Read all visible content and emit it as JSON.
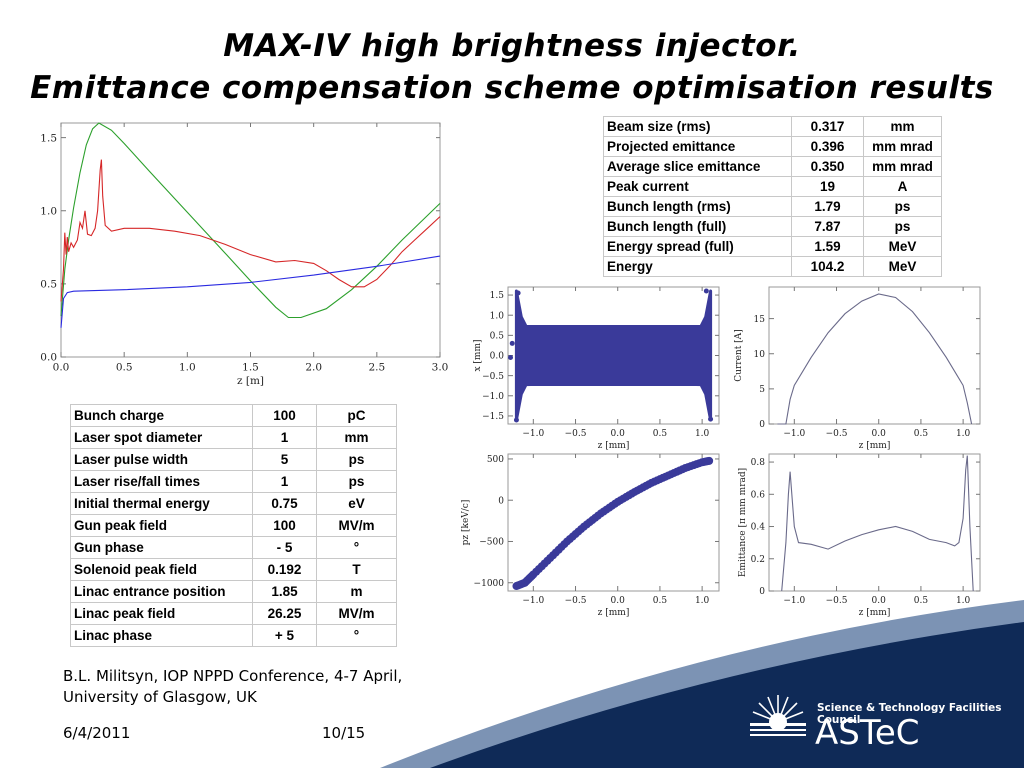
{
  "title": {
    "line1": "MAX-IV high brightness injector.",
    "line2": "Emittance compensation scheme optimisation results"
  },
  "beam_parameters": [
    {
      "name": "Beam size (rms)",
      "value": "0.317",
      "unit": "mm"
    },
    {
      "name": "Projected emittance",
      "value": "0.396",
      "unit": "mm mrad"
    },
    {
      "name": "Average slice emittance",
      "value": "0.350",
      "unit": "mm mrad"
    },
    {
      "name": "Peak current",
      "value": "19",
      "unit": "A"
    },
    {
      "name": "Bunch length (rms)",
      "value": "1.79",
      "unit": "ps"
    },
    {
      "name": "Bunch length (full)",
      "value": "7.87",
      "unit": "ps"
    },
    {
      "name": "Energy spread (full)",
      "value": "1.59",
      "unit": "MeV"
    },
    {
      "name": "Energy",
      "value": "104.2",
      "unit": "MeV"
    }
  ],
  "injector_parameters": [
    {
      "name": "Bunch charge",
      "value": "100",
      "unit": "pC"
    },
    {
      "name": "Laser spot diameter",
      "value": "1",
      "unit": "mm"
    },
    {
      "name": "Laser pulse width",
      "value": "5",
      "unit": "ps"
    },
    {
      "name": "Laser rise/fall times",
      "value": "1",
      "unit": "ps"
    },
    {
      "name": "Initial thermal energy",
      "value": "0.75",
      "unit": "eV"
    },
    {
      "name": "Gun peak field",
      "value": "100",
      "unit": "MV/m"
    },
    {
      "name": "Gun phase",
      "value": "- 5",
      "unit": "°"
    },
    {
      "name": "Solenoid peak field",
      "value": "0.192",
      "unit": "T"
    },
    {
      "name": "Linac entrance position",
      "value": "1.85",
      "unit": "m"
    },
    {
      "name": "Linac peak field",
      "value": "26.25",
      "unit": "MV/m"
    },
    {
      "name": "Linac phase",
      "value": "+ 5",
      "unit": "°"
    }
  ],
  "footer": {
    "citation_line1": "B.L. Militsyn, IOP NPPD Conference, 4-7 April,",
    "citation_line2": "University of Glasgow, UK",
    "date": "6/4/2011",
    "page": "10/15"
  },
  "logo": {
    "council": "Science & Technology Facilities Council",
    "name": "ASTeC"
  },
  "colors": {
    "banner_navy": "#0f2a57",
    "banner_stripe": "#7c93b4",
    "plot_blue": "#3a3a9a",
    "plot_grey": "#6a6a8a"
  },
  "chart_data": [
    {
      "type": "line",
      "xlabel": "z [m]",
      "ylabel": "",
      "xlim": [
        0,
        3.0
      ],
      "ylim": [
        0,
        1.6
      ],
      "xticks": [
        0.0,
        0.5,
        1.0,
        1.5,
        2.0,
        2.5,
        3.0
      ],
      "yticks": [
        0.0,
        0.5,
        1.0,
        1.5
      ],
      "xtick_labels": [
        "0.0",
        "0.5",
        "1.0",
        "1.5",
        "2.0",
        "2.5",
        "3.0"
      ],
      "ytick_labels": [
        "0.0",
        "0.5",
        "1.0",
        "1.5"
      ],
      "series": [
        {
          "color": "#2ca02c",
          "x": [
            0,
            0.03,
            0.06,
            0.1,
            0.15,
            0.2,
            0.25,
            0.3,
            0.4,
            0.5,
            0.7,
            1.0,
            1.3,
            1.5,
            1.7,
            1.8,
            1.9,
            2.1,
            2.3,
            2.5,
            2.7,
            3.0
          ],
          "y": [
            0.28,
            0.6,
            0.8,
            1.02,
            1.26,
            1.45,
            1.56,
            1.6,
            1.55,
            1.46,
            1.27,
            0.99,
            0.71,
            0.52,
            0.34,
            0.27,
            0.27,
            0.33,
            0.46,
            0.62,
            0.8,
            1.05
          ]
        },
        {
          "color": "#d62728",
          "x": [
            0,
            0.02,
            0.03,
            0.04,
            0.05,
            0.06,
            0.08,
            0.1,
            0.13,
            0.15,
            0.17,
            0.19,
            0.21,
            0.24,
            0.27,
            0.29,
            0.31,
            0.32,
            0.33,
            0.35,
            0.4,
            0.5,
            0.7,
            0.9,
            1.1,
            1.3,
            1.5,
            1.7,
            1.85,
            2.0,
            2.1,
            2.2,
            2.3,
            2.4,
            2.5,
            2.6,
            2.7,
            2.8,
            2.9,
            3.0
          ],
          "y": [
            0.38,
            0.6,
            0.85,
            0.7,
            0.82,
            0.72,
            0.78,
            0.75,
            0.8,
            0.92,
            0.88,
            1.0,
            0.84,
            0.83,
            0.88,
            1.0,
            1.28,
            1.35,
            1.1,
            0.9,
            0.86,
            0.88,
            0.88,
            0.86,
            0.83,
            0.77,
            0.7,
            0.65,
            0.66,
            0.64,
            0.59,
            0.53,
            0.48,
            0.48,
            0.53,
            0.62,
            0.72,
            0.8,
            0.88,
            0.96
          ]
        },
        {
          "color": "#2a2ae0",
          "x": [
            0,
            0.02,
            0.05,
            0.1,
            0.5,
            1.0,
            1.5,
            2.0,
            2.5,
            3.0
          ],
          "y": [
            0.2,
            0.4,
            0.44,
            0.45,
            0.46,
            0.48,
            0.51,
            0.56,
            0.62,
            0.69
          ]
        }
      ]
    },
    {
      "type": "scatter",
      "xlabel": "z [mm]",
      "ylabel": "x [mm]",
      "xlim": [
        -1.3,
        1.2
      ],
      "ylim": [
        -1.7,
        1.7
      ],
      "xticks": [
        -1.0,
        -0.5,
        0.0,
        0.5,
        1.0
      ],
      "yticks": [
        -1.5,
        -1.0,
        -0.5,
        0.0,
        0.5,
        1.0,
        1.5
      ],
      "xtick_labels": [
        "−1.0",
        "−0.5",
        "0.0",
        "0.5",
        "1.0"
      ],
      "ytick_labels": [
        "−1.5",
        "−1.0",
        "−0.5",
        "0.0",
        "0.5",
        "1.0",
        "1.5"
      ],
      "shape": {
        "z_min": -1.2,
        "z_max": 1.1,
        "core_half_width": 0.72,
        "edge_half_width": 1.6
      }
    },
    {
      "type": "line",
      "xlabel": "z [mm]",
      "ylabel": "Current [A]",
      "xlim": [
        -1.3,
        1.2
      ],
      "ylim": [
        0,
        19.5
      ],
      "xticks": [
        -1.0,
        -0.5,
        0.0,
        0.5,
        1.0
      ],
      "yticks": [
        0,
        5,
        10,
        15
      ],
      "xtick_labels": [
        "−1.0",
        "−0.5",
        "0.0",
        "0.5",
        "1.0"
      ],
      "ytick_labels": [
        "0",
        "5",
        "10",
        "15"
      ],
      "series": [
        {
          "color": "#6a6a8a",
          "x": [
            -1.2,
            -1.1,
            -1.05,
            -1.0,
            -0.8,
            -0.6,
            -0.4,
            -0.2,
            0.0,
            0.2,
            0.4,
            0.6,
            0.8,
            1.0,
            1.05,
            1.1
          ],
          "y": [
            0,
            0,
            3.5,
            5.5,
            9.5,
            13.0,
            15.7,
            17.5,
            18.5,
            18.0,
            16.0,
            13.0,
            9.5,
            5.5,
            3.0,
            0
          ]
        }
      ]
    },
    {
      "type": "scatter",
      "xlabel": "z [mm]",
      "ylabel": "pz [keV/c]",
      "xlim": [
        -1.3,
        1.2
      ],
      "ylim": [
        -1100,
        560
      ],
      "xticks": [
        -1.0,
        -0.5,
        0.0,
        0.5,
        1.0
      ],
      "yticks": [
        -1000,
        -500,
        0,
        500
      ],
      "xtick_labels": [
        "−1.0",
        "−0.5",
        "0.0",
        "0.5",
        "1.0"
      ],
      "ytick_labels": [
        "−1000",
        "−500",
        "0",
        "500"
      ],
      "series": [
        {
          "color": "#3a3a9a",
          "x": [
            -1.2,
            -1.1,
            -1.0,
            -0.8,
            -0.6,
            -0.4,
            -0.2,
            0.0,
            0.2,
            0.4,
            0.6,
            0.8,
            1.0,
            1.1
          ],
          "y": [
            -1040,
            -1000,
            -900,
            -700,
            -500,
            -320,
            -160,
            -20,
            100,
            210,
            300,
            390,
            460,
            480
          ]
        }
      ]
    },
    {
      "type": "line",
      "xlabel": "z [mm]",
      "ylabel": "Emittance [π mm mrad]",
      "xlim": [
        -1.3,
        1.2
      ],
      "ylim": [
        0,
        0.85
      ],
      "xticks": [
        -1.0,
        -0.5,
        0.0,
        0.5,
        1.0
      ],
      "yticks": [
        0,
        0.2,
        0.4,
        0.6,
        0.8
      ],
      "xtick_labels": [
        "−1.0",
        "−0.5",
        "0.0",
        "0.5",
        "1.0"
      ],
      "ytick_labels": [
        "0",
        "0.2",
        "0.4",
        "0.6",
        "0.8"
      ],
      "series": [
        {
          "color": "#6a6a8a",
          "x": [
            -1.15,
            -1.1,
            -1.07,
            -1.05,
            -1.0,
            -0.95,
            -0.8,
            -0.6,
            -0.4,
            -0.2,
            0.0,
            0.2,
            0.4,
            0.6,
            0.8,
            0.9,
            0.95,
            1.0,
            1.03,
            1.05,
            1.08,
            1.12
          ],
          "y": [
            0,
            0.3,
            0.6,
            0.74,
            0.4,
            0.3,
            0.29,
            0.26,
            0.31,
            0.35,
            0.38,
            0.4,
            0.37,
            0.32,
            0.3,
            0.28,
            0.3,
            0.45,
            0.75,
            0.84,
            0.4,
            0
          ]
        }
      ]
    }
  ]
}
